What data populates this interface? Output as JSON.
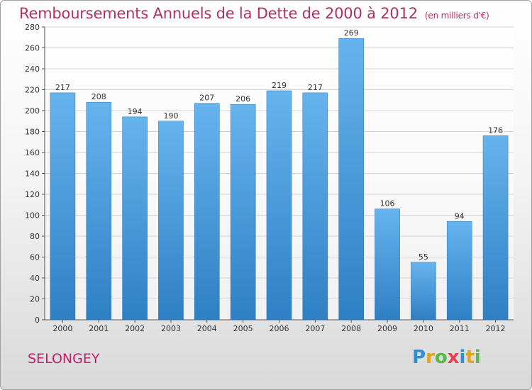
{
  "chart_data": {
    "type": "bar",
    "title": "Remboursements Annuels de la Dette de 2000 à 2012",
    "unit_label": "(en milliers d'€)",
    "xlabel": "",
    "ylabel": "",
    "categories": [
      "2000",
      "2001",
      "2002",
      "2003",
      "2004",
      "2005",
      "2006",
      "2007",
      "2008",
      "2009",
      "2010",
      "2011",
      "2012"
    ],
    "values": [
      217,
      208,
      194,
      190,
      207,
      206,
      219,
      217,
      269,
      106,
      55,
      94,
      176
    ],
    "ylim": [
      0,
      280
    ],
    "yticks": [
      0,
      20,
      40,
      60,
      80,
      100,
      120,
      140,
      160,
      180,
      200,
      220,
      240,
      260,
      280
    ],
    "grid": true,
    "bar_color": "#4a9ee0"
  },
  "location": "SELONGEY",
  "logo": {
    "letters": [
      "P",
      "r",
      "o",
      "x",
      "i",
      "t",
      "i"
    ],
    "colors": [
      "#2e8fd6",
      "#e8a020",
      "#58b848",
      "#e84050",
      "#2e8fd6",
      "#e8a020",
      "#58b848"
    ]
  }
}
